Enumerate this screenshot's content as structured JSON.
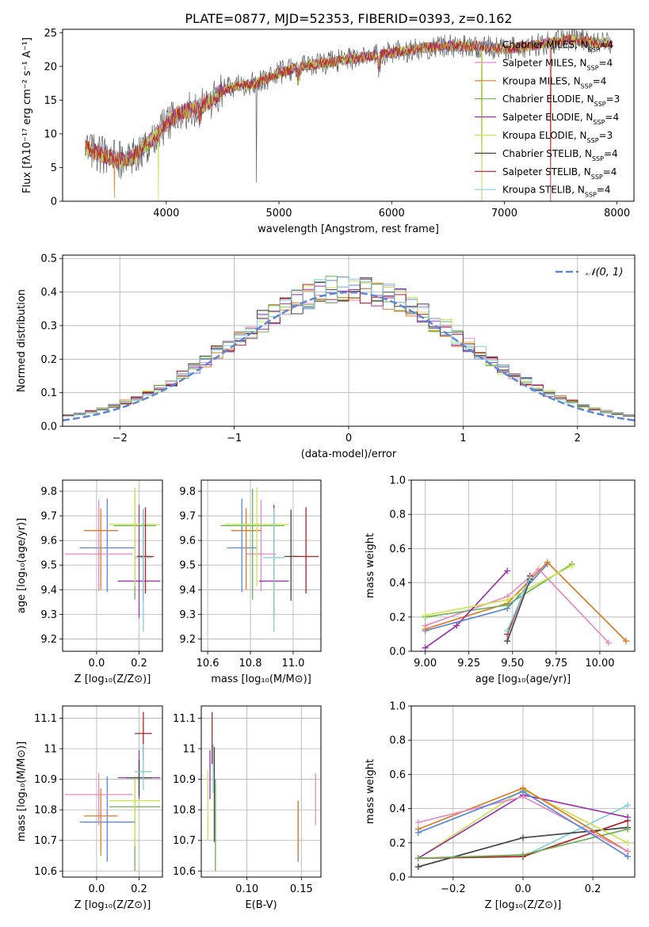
{
  "figure": {
    "title": "PLATE=0877, MJD=52353, FIBERID=0393, z=0.162"
  },
  "models": [
    {
      "name": "Chabrier MILES",
      "nssp": "4",
      "color": "#5b87d6"
    },
    {
      "name": "Salpeter MILES",
      "nssp": "4",
      "color": "#e889c4"
    },
    {
      "name": "Kroupa MILES",
      "nssp": "4",
      "color": "#df7b25"
    },
    {
      "name": "Chabrier ELODIE",
      "nssp": "3",
      "color": "#6bb155"
    },
    {
      "name": "Salpeter ELODIE",
      "nssp": "4",
      "color": "#9c33b0"
    },
    {
      "name": "Kroupa ELODIE",
      "nssp": "3",
      "color": "#c9e64d"
    },
    {
      "name": "Chabrier STELIB",
      "nssp": "4",
      "color": "#454545"
    },
    {
      "name": "Salpeter STELIB",
      "nssp": "4",
      "color": "#b52020"
    },
    {
      "name": "Kroupa STELIB",
      "nssp": "4",
      "color": "#7fcfdd"
    }
  ],
  "chart_data": [
    {
      "id": "spectrum",
      "type": "line",
      "xlabel": "wavelength [Angstrom, rest frame]",
      "ylabel": "Flux [fλ10⁻¹⁷ erg cm⁻² s⁻¹ A⁻¹]",
      "xlim": [
        3080,
        8150
      ],
      "ylim": [
        0,
        25.5
      ],
      "xticks": [
        4000,
        5000,
        6000,
        7000,
        8000
      ],
      "yticks": [
        0,
        5,
        10,
        15,
        20,
        25
      ],
      "grid": false,
      "legend": "upper-right",
      "anchors_x": [
        3280,
        3400,
        3500,
        3600,
        3700,
        3800,
        3900,
        4000,
        4100,
        4200,
        4300,
        4400,
        4500,
        4600,
        4800,
        5000,
        5200,
        5400,
        5600,
        5800,
        6000,
        6200,
        6400,
        6600,
        6800,
        7000,
        7200,
        7400,
        7600,
        7800,
        7950
      ],
      "anchors_y": [
        8.0,
        7.0,
        6.5,
        6.0,
        6.5,
        8.0,
        9.5,
        11.5,
        13.0,
        13.5,
        14.0,
        15.0,
        16.5,
        17.0,
        17.5,
        19.0,
        20.0,
        20.5,
        21.0,
        21.5,
        22.0,
        22.5,
        23.0,
        23.0,
        23.0,
        22.5,
        23.0,
        23.5,
        24.0,
        23.5,
        23.5
      ],
      "dips": [
        {
          "x": 3540,
          "y": 0.5
        },
        {
          "x": 3930,
          "y": 0
        },
        {
          "x": 4800,
          "y": 2.8
        },
        {
          "x": 6800,
          "y": 0
        },
        {
          "x": 7410,
          "y": 0
        }
      ]
    },
    {
      "id": "residuals",
      "type": "step",
      "xlabel": "(data-model)/error",
      "ylabel": "Normed distribution",
      "xlim": [
        -2.5,
        2.5
      ],
      "ylim": [
        0,
        0.51
      ],
      "xticks": [
        -2,
        -1,
        0,
        1,
        2
      ],
      "xtick_labels": [
        "−2",
        "−1",
        "0",
        "1",
        "2"
      ],
      "yticks": [
        0.0,
        0.1,
        0.2,
        0.3,
        0.4,
        0.5
      ],
      "grid": true,
      "legend": "upper-right",
      "reference_curve": {
        "name": "𝒩(0, 1)",
        "mean": 0,
        "sigma": 1,
        "color": "#5b87d6"
      },
      "bin_width": 0.1
    },
    {
      "id": "age-vs-Z",
      "type": "errorbar",
      "xlabel": "Z [log₁₀(Z/Z⊙)]",
      "ylabel": "age  [log₁₀(age/yr)]",
      "xlim": [
        -0.16,
        0.31
      ],
      "ylim": [
        9.15,
        9.845
      ],
      "xticks": [
        0.0,
        0.2
      ],
      "xtick_labels": [
        "0.0",
        "0.2"
      ],
      "yticks": [
        9.2,
        9.3,
        9.4,
        9.5,
        9.6,
        9.7,
        9.8
      ],
      "grid": true,
      "points": [
        {
          "x": 0.05,
          "y": 9.57,
          "xerr": 0.13,
          "yerr": [
            0.18,
            0.2
          ]
        },
        {
          "x": 0.01,
          "y": 9.545,
          "xerr": 0.16,
          "yerr": [
            0.15,
            0.22
          ]
        },
        {
          "x": 0.02,
          "y": 9.64,
          "xerr": 0.08,
          "yerr": [
            0.24,
            0.09
          ]
        },
        {
          "x": 0.18,
          "y": 9.66,
          "xerr": 0.1,
          "yerr": [
            0.3,
            0.15
          ]
        },
        {
          "x": 0.2,
          "y": 9.435,
          "xerr": 0.1,
          "yerr": [
            0.15,
            0.31
          ]
        },
        {
          "x": 0.18,
          "y": 9.665,
          "xerr": 0.12,
          "yerr": [
            0.25,
            0.15
          ]
        },
        {
          "x": 0.22,
          "y": 9.535,
          "xerr": 0.03,
          "yerr": [
            0.18,
            0.19
          ]
        },
        {
          "x": 0.23,
          "y": 9.535,
          "xerr": 0.04,
          "yerr": [
            0.15,
            0.2
          ]
        },
        {
          "x": 0.22,
          "y": 9.53,
          "xerr": 0.04,
          "yerr": [
            0.3,
            0.2
          ]
        }
      ]
    },
    {
      "id": "age-vs-mass",
      "type": "errorbar",
      "xlabel": "mass [log₁₀(M/M⊙)]",
      "ylabel": "",
      "xlim": [
        10.57,
        11.13
      ],
      "ylim": [
        9.15,
        9.845
      ],
      "xticks": [
        10.6,
        10.8,
        11.0
      ],
      "xtick_labels": [
        "10.6",
        "10.8",
        "11.0"
      ],
      "yticks": [
        9.2,
        9.3,
        9.4,
        9.5,
        9.6,
        9.7,
        9.8
      ],
      "grid": true,
      "points": [
        {
          "x": 10.76,
          "y": 9.57,
          "xerr": 0.07,
          "yerr": [
            0.18,
            0.2
          ]
        },
        {
          "x": 10.85,
          "y": 9.545,
          "xerr": 0.07,
          "yerr": [
            0.15,
            0.22
          ]
        },
        {
          "x": 10.78,
          "y": 9.64,
          "xerr": 0.07,
          "yerr": [
            0.24,
            0.09
          ]
        },
        {
          "x": 10.81,
          "y": 9.66,
          "xerr": 0.15,
          "yerr": [
            0.3,
            0.15
          ]
        },
        {
          "x": 10.91,
          "y": 9.435,
          "xerr": 0.07,
          "yerr": [
            0.15,
            0.31
          ]
        },
        {
          "x": 10.83,
          "y": 9.665,
          "xerr": 0.15,
          "yerr": [
            0.25,
            0.15
          ]
        },
        {
          "x": 10.99,
          "y": 9.535,
          "xerr": 0.03,
          "yerr": [
            0.18,
            0.19
          ]
        },
        {
          "x": 11.06,
          "y": 9.535,
          "xerr": 0.06,
          "yerr": [
            0.15,
            0.2
          ]
        },
        {
          "x": 10.91,
          "y": 9.53,
          "xerr": 0.05,
          "yerr": [
            0.3,
            0.2
          ]
        }
      ]
    },
    {
      "id": "mass-weight-vs-age",
      "type": "line",
      "xlabel": "age  [log₁₀(age/yr)]",
      "ylabel": "mass weight",
      "xlim": [
        8.92,
        10.2
      ],
      "ylim": [
        0,
        1.0
      ],
      "xticks": [
        9.0,
        9.25,
        9.5,
        9.75,
        10.0
      ],
      "xtick_labels": [
        "9.00",
        "9.25",
        "9.50",
        "9.75",
        "10.00"
      ],
      "yticks": [
        0.0,
        0.2,
        0.4,
        0.6,
        0.8,
        1.0
      ],
      "grid": true,
      "series": [
        {
          "x": [
            9.0,
            9.47,
            9.7
          ],
          "y": [
            0.12,
            0.25,
            0.51
          ]
        },
        {
          "x": [
            9.0,
            9.47,
            9.65,
            10.05
          ],
          "y": [
            0.15,
            0.32,
            0.48,
            0.05
          ]
        },
        {
          "x": [
            9.0,
            9.47,
            9.7,
            10.15
          ],
          "y": [
            0.13,
            0.28,
            0.52,
            0.06
          ]
        },
        {
          "x": [
            9.0,
            9.47,
            9.84
          ],
          "y": [
            0.2,
            0.27,
            0.51
          ]
        },
        {
          "x": [
            9.0,
            9.18,
            9.47
          ],
          "y": [
            0.02,
            0.15,
            0.47
          ]
        },
        {
          "x": [
            9.0,
            9.47,
            9.84
          ],
          "y": [
            0.21,
            0.3,
            0.5
          ]
        },
        {
          "x": [
            9.47,
            9.6
          ],
          "y": [
            0.06,
            0.42
          ]
        },
        {
          "x": [
            9.47,
            9.6
          ],
          "y": [
            0.1,
            0.44
          ]
        },
        {
          "x": [
            9.47,
            9.6
          ],
          "y": [
            0.12,
            0.43
          ]
        }
      ]
    },
    {
      "id": "mass-vs-Z",
      "type": "errorbar",
      "xlabel": "Z [log₁₀(Z/Z⊙)]",
      "ylabel": "mass [log₁₀(M/M⊙)]",
      "xlim": [
        -0.16,
        0.31
      ],
      "ylim": [
        10.58,
        11.14
      ],
      "xticks": [
        0.0,
        0.2
      ],
      "xtick_labels": [
        "0.0",
        "0.2"
      ],
      "yticks": [
        10.6,
        10.7,
        10.8,
        10.9,
        11.0,
        11.1
      ],
      "grid": true,
      "points": [
        {
          "x": 0.05,
          "y": 10.76,
          "xerr": 0.13,
          "yerr": [
            0.13,
            0.15
          ]
        },
        {
          "x": 0.01,
          "y": 10.85,
          "xerr": 0.16,
          "yerr": [
            0.1,
            0.07
          ]
        },
        {
          "x": 0.02,
          "y": 10.78,
          "xerr": 0.08,
          "yerr": [
            0.13,
            0.09
          ]
        },
        {
          "x": 0.18,
          "y": 10.81,
          "xerr": 0.12,
          "yerr": [
            0.21,
            0.1
          ]
        },
        {
          "x": 0.2,
          "y": 10.905,
          "xerr": 0.1,
          "yerr": [
            0.07,
            0.09
          ]
        },
        {
          "x": 0.18,
          "y": 10.83,
          "xerr": 0.12,
          "yerr": [
            0.15,
            0.08
          ]
        },
        {
          "x": 0.2,
          "y": 10.905,
          "xerr": 0.06,
          "yerr": [
            0.06,
            0.06
          ]
        },
        {
          "x": 0.22,
          "y": 11.05,
          "xerr": 0.04,
          "yerr": [
            0.09,
            0.07
          ]
        },
        {
          "x": 0.22,
          "y": 10.925,
          "xerr": 0.04,
          "yerr": [
            0.06,
            0.09
          ]
        }
      ]
    },
    {
      "id": "mass-vs-ebv",
      "type": "errorbar",
      "xlabel": "E(B-V)",
      "ylabel": "",
      "xlim": [
        0.058,
        0.168
      ],
      "ylim": [
        10.58,
        11.14
      ],
      "xticks": [
        0.1,
        0.15
      ],
      "xtick_labels": [
        "0.10",
        "0.15"
      ],
      "yticks": [
        10.6,
        10.7,
        10.8,
        10.9,
        11.0,
        11.1
      ],
      "grid": true,
      "points": [
        {
          "x": 0.147,
          "y": 10.76,
          "xerr": 0,
          "yerr": [
            0.13,
            0.07
          ]
        },
        {
          "x": 0.163,
          "y": 10.85,
          "xerr": 0,
          "yerr": [
            0.1,
            0.07
          ]
        },
        {
          "x": 0.147,
          "y": 10.78,
          "xerr": 0,
          "yerr": [
            0.13,
            0.05
          ]
        },
        {
          "x": 0.071,
          "y": 10.81,
          "xerr": 0,
          "yerr": [
            0.21,
            0.09
          ]
        },
        {
          "x": 0.066,
          "y": 10.905,
          "xerr": 0,
          "yerr": [
            0.07,
            0.09
          ]
        },
        {
          "x": 0.064,
          "y": 10.83,
          "xerr": 0,
          "yerr": [
            0.13,
            0.1
          ]
        },
        {
          "x": 0.07,
          "y": 10.905,
          "xerr": 0,
          "yerr": [
            0.21,
            0.1
          ]
        },
        {
          "x": 0.068,
          "y": 11.05,
          "xerr": 0,
          "yerr": [
            0.1,
            0.07
          ]
        },
        {
          "x": 0.069,
          "y": 10.925,
          "xerr": 0,
          "yerr": [
            0.07,
            0.09
          ]
        }
      ]
    },
    {
      "id": "mass-weight-vs-Z",
      "type": "line",
      "xlabel": "Z [log₁₀(Z/Z⊙)]",
      "ylabel": "mass weight",
      "xlim": [
        -0.32,
        0.32
      ],
      "ylim": [
        0,
        1.0
      ],
      "xticks": [
        -0.2,
        0.0,
        0.2
      ],
      "xtick_labels": [
        "−0.2",
        "0.0",
        "0.2"
      ],
      "yticks": [
        0.0,
        0.2,
        0.4,
        0.6,
        0.8,
        1.0
      ],
      "grid": true,
      "series": [
        {
          "x": [
            -0.3,
            0.0,
            0.3
          ],
          "y": [
            0.26,
            0.5,
            0.12
          ]
        },
        {
          "x": [
            -0.3,
            0.0,
            0.3
          ],
          "y": [
            0.32,
            0.47,
            0.15
          ]
        },
        {
          "x": [
            -0.3,
            0.0,
            0.3
          ],
          "y": [
            0.28,
            0.52,
            0.15
          ]
        },
        {
          "x": [
            -0.3,
            0.0,
            0.3
          ],
          "y": [
            0.11,
            0.13,
            0.28
          ]
        },
        {
          "x": [
            -0.3,
            0.0,
            0.3
          ],
          "y": [
            0.11,
            0.48,
            0.35
          ]
        },
        {
          "x": [
            -0.3,
            0.0,
            0.3
          ],
          "y": [
            0.11,
            0.51,
            0.2
          ]
        },
        {
          "x": [
            -0.3,
            0.0,
            0.3
          ],
          "y": [
            0.06,
            0.23,
            0.29
          ]
        },
        {
          "x": [
            -0.3,
            0.0,
            0.3
          ],
          "y": [
            0.11,
            0.12,
            0.33
          ]
        },
        {
          "x": [
            -0.3,
            0.0,
            0.3
          ],
          "y": [
            0.11,
            0.12,
            0.42
          ]
        }
      ]
    }
  ]
}
